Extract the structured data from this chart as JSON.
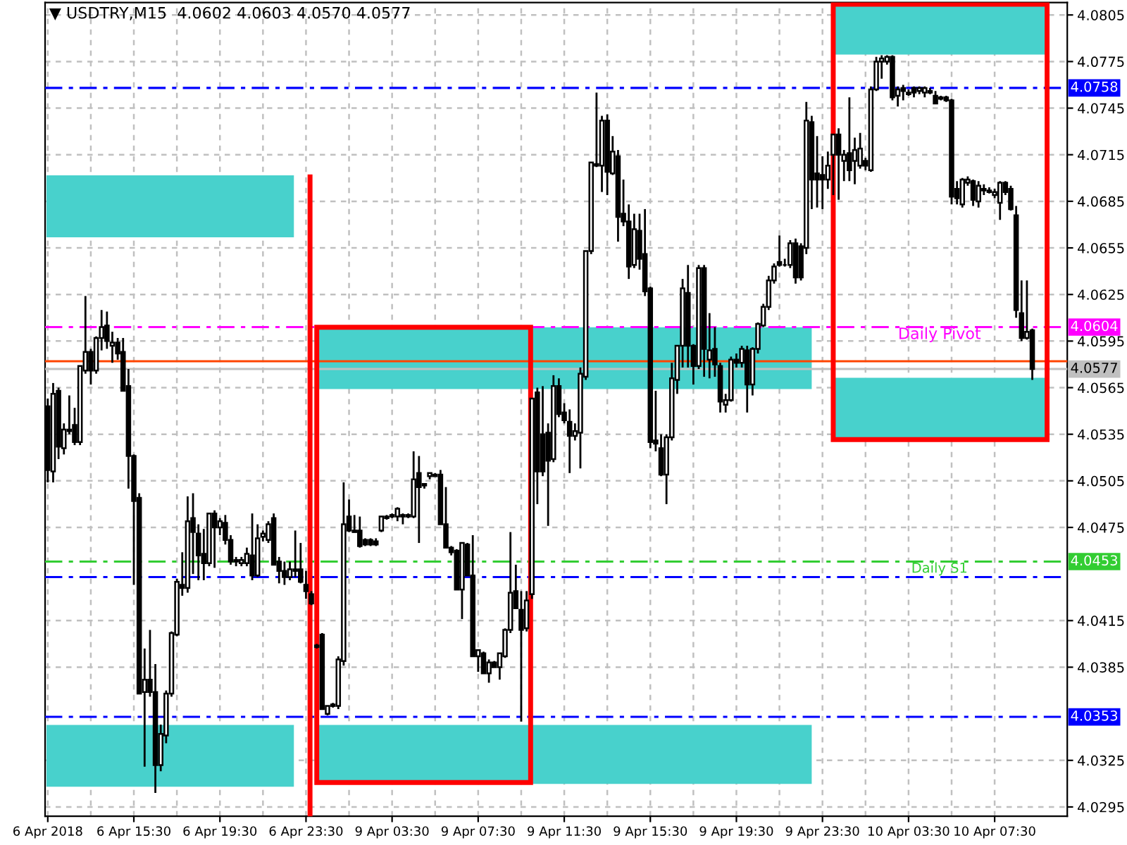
{
  "chart_data": {
    "type": "candlestick",
    "title": "▼ USDTRY,M15  4.0602 4.0603 4.0570 4.0577",
    "categories": [
      "6 Apr 2018",
      null,
      null,
      null,
      null,
      null,
      null,
      null,
      null,
      null,
      null,
      null,
      null,
      null,
      null,
      null,
      "6 Apr 15:30",
      null,
      null,
      null,
      null,
      null,
      null,
      null,
      null,
      null,
      null,
      null,
      null,
      null,
      null,
      null,
      "6 Apr 19:30",
      null,
      null,
      null,
      null,
      null,
      null,
      null,
      null,
      null,
      null,
      null,
      null,
      null,
      null,
      null,
      "6 Apr 23:30",
      null,
      null,
      null,
      null,
      null,
      null,
      null,
      null,
      null,
      null,
      null,
      null,
      null,
      null,
      null,
      "9 Apr 03:30",
      null,
      null,
      null,
      null,
      null,
      null,
      null,
      null,
      null,
      null,
      null,
      null,
      null,
      null,
      null,
      "9 Apr 07:30",
      null,
      null,
      null,
      null,
      null,
      null,
      null,
      null,
      null,
      null,
      null,
      null,
      null,
      null,
      null,
      "9 Apr 11:30",
      null,
      null,
      null,
      null,
      null,
      null,
      null,
      null,
      null,
      null,
      null,
      null,
      null,
      null,
      null,
      "9 Apr 15:30",
      null,
      null,
      null,
      null,
      null,
      null,
      null,
      null,
      null,
      null,
      null,
      null,
      null,
      null,
      null,
      "9 Apr 19:30",
      null,
      null,
      null,
      null,
      null,
      null,
      null,
      null,
      null,
      null,
      null,
      null,
      null,
      null,
      null,
      "9 Apr 23:30",
      null,
      null,
      null,
      null,
      null,
      null,
      null,
      null,
      null,
      null,
      null,
      null,
      null,
      null,
      null,
      "10 Apr 03:30",
      null,
      null,
      null,
      null,
      null,
      null,
      null,
      null,
      null,
      null,
      null,
      null,
      null,
      null,
      null,
      "10 Apr 07:30",
      null,
      null,
      null,
      null,
      null,
      null,
      null
    ],
    "ohlc": [
      [
        4.0553,
        4.0558,
        4.0504,
        4.0512
      ],
      [
        4.0511,
        4.0568,
        4.0504,
        4.0561
      ],
      [
        4.0563,
        4.0565,
        4.0519,
        4.0527
      ],
      [
        4.0526,
        4.0542,
        4.0522,
        4.0538
      ],
      [
        4.0538,
        4.056,
        4.0535,
        4.0537
      ],
      [
        4.0541,
        4.0552,
        4.0528,
        4.053
      ],
      [
        4.053,
        4.0579,
        4.0528,
        4.0579
      ],
      [
        4.0576,
        4.0624,
        4.0574,
        4.0588
      ],
      [
        4.0588,
        4.059,
        4.0567,
        4.0576
      ],
      [
        4.0576,
        4.0598,
        4.0574,
        4.0597
      ],
      [
        4.0597,
        4.0615,
        4.0589,
        4.0604
      ],
      [
        4.0605,
        4.0614,
        4.059,
        4.0595
      ],
      [
        4.0592,
        4.0601,
        4.0581,
        4.0594
      ],
      [
        4.0594,
        4.0597,
        4.0583,
        4.0587
      ],
      [
        4.0588,
        4.0597,
        4.0563,
        4.0563
      ],
      [
        4.0566,
        4.0577,
        4.05,
        4.0521
      ],
      [
        4.0521,
        4.0522,
        4.0438,
        4.0492
      ],
      [
        4.0494,
        4.0497,
        4.0368,
        4.0368
      ],
      [
        4.0369,
        4.0397,
        4.0321,
        4.0377
      ],
      [
        4.0377,
        4.0409,
        4.0366,
        4.0369
      ],
      [
        4.0369,
        4.0387,
        4.0304,
        4.0322
      ],
      [
        4.0322,
        4.0348,
        4.0318,
        4.0342
      ],
      [
        4.0341,
        4.037,
        4.0336,
        4.0368
      ],
      [
        4.0368,
        4.0408,
        4.0366,
        4.0407
      ],
      [
        4.0406,
        4.0442,
        4.0405,
        4.044
      ],
      [
        4.0438,
        4.0459,
        4.0431,
        4.0436
      ],
      [
        4.0436,
        4.0495,
        4.0433,
        4.0479
      ],
      [
        4.0481,
        4.0497,
        4.0445,
        4.0472
      ],
      [
        4.0471,
        4.0477,
        4.0441,
        4.0457
      ],
      [
        4.0458,
        4.0474,
        4.0441,
        4.0452
      ],
      [
        4.0452,
        4.0484,
        4.045,
        4.0484
      ],
      [
        4.0484,
        4.0486,
        4.0449,
        4.0475
      ],
      [
        4.0475,
        4.0481,
        4.047,
        4.0479
      ],
      [
        4.0478,
        4.0483,
        4.0464,
        4.0467
      ],
      [
        4.0467,
        4.047,
        4.0451,
        4.0453
      ],
      [
        4.0454,
        4.0456,
        4.045,
        4.0453
      ],
      [
        4.0452,
        4.0456,
        4.045,
        4.0454
      ],
      [
        4.0452,
        4.0462,
        4.045,
        4.0458
      ],
      [
        4.0457,
        4.0484,
        4.0441,
        4.0444
      ],
      [
        4.0444,
        4.0477,
        4.0443,
        4.0468
      ],
      [
        4.0469,
        4.0473,
        4.0466,
        4.0471
      ],
      [
        4.0467,
        4.0479,
        4.0465,
        4.0477
      ],
      [
        4.0481,
        4.0484,
        4.0451,
        4.0451
      ],
      [
        4.0453,
        4.0456,
        4.0439,
        4.0447
      ],
      [
        4.0447,
        4.0453,
        4.0438,
        4.0443
      ],
      [
        4.0443,
        4.0453,
        4.0441,
        4.0448
      ],
      [
        4.0447,
        4.0473,
        4.0443,
        4.0448
      ],
      [
        4.0448,
        4.0465,
        4.0439,
        4.044
      ],
      [
        4.0438,
        4.0447,
        4.0429,
        4.0434
      ],
      [
        4.0432,
        4.0434,
        4.0425,
        4.0426
      ],
      [
        4.0399,
        4.04,
        4.0397,
        4.0398
      ],
      [
        4.0406,
        4.0407,
        4.0358,
        4.0358
      ],
      [
        4.0355,
        4.036,
        4.0354,
        4.036
      ],
      [
        4.0361,
        4.0362,
        4.0359,
        4.036
      ],
      [
        4.036,
        4.0392,
        4.0358,
        4.039
      ],
      [
        4.0389,
        4.0504,
        4.0386,
        4.0477
      ],
      [
        4.0482,
        4.0493,
        4.0472,
        4.0473
      ],
      [
        4.0473,
        4.0483,
        4.0472,
        4.0472
      ],
      [
        4.0473,
        4.0482,
        4.0462,
        4.0463
      ],
      [
        4.0467,
        4.0468,
        4.0463,
        4.0464
      ],
      [
        4.0467,
        4.0468,
        4.0463,
        4.0464
      ],
      [
        4.0466,
        4.0468,
        4.0463,
        4.0464
      ],
      [
        4.0473,
        4.0482,
        4.0472,
        4.0482
      ],
      [
        4.0482,
        4.0483,
        4.048,
        4.0481
      ],
      [
        4.0483,
        4.0484,
        4.0481,
        4.0482
      ],
      [
        4.0482,
        4.0488,
        4.0479,
        4.0487
      ],
      [
        4.0483,
        4.0484,
        4.0477,
        4.0482
      ],
      [
        4.0483,
        4.0484,
        4.0481,
        4.0482
      ],
      [
        4.0482,
        4.0524,
        4.0481,
        4.0506
      ],
      [
        4.051,
        4.0521,
        4.0465,
        4.0501
      ],
      [
        4.0502,
        4.0503,
        4.05,
        4.0503
      ],
      [
        4.0508,
        4.051,
        4.0506,
        4.051
      ],
      [
        4.0509,
        4.051,
        4.0508,
        4.0508
      ],
      [
        4.0509,
        4.0512,
        4.0477,
        4.0477
      ],
      [
        4.0477,
        4.0501,
        4.0462,
        4.0462
      ],
      [
        4.0462,
        4.0463,
        4.0457,
        4.0459
      ],
      [
        4.046,
        4.0461,
        4.0435,
        4.0435
      ],
      [
        4.0435,
        4.0465,
        4.0416,
        4.0465
      ],
      [
        4.0464,
        4.0465,
        4.0444,
        4.0444
      ],
      [
        4.0444,
        4.047,
        4.0392,
        4.0392
      ],
      [
        4.0392,
        4.0396,
        4.0382,
        4.0396
      ],
      [
        4.0394,
        4.0395,
        4.0381,
        4.0381
      ],
      [
        4.0381,
        4.039,
        4.0375,
        4.0388
      ],
      [
        4.0388,
        4.0389,
        4.0385,
        4.0385
      ],
      [
        4.0385,
        4.0394,
        4.0377,
        4.0394
      ],
      [
        4.0392,
        4.041,
        4.0391,
        4.0409
      ],
      [
        4.0409,
        4.0472,
        4.0407,
        4.0433
      ],
      [
        4.0434,
        4.0451,
        4.0423,
        4.0423
      ],
      [
        4.0422,
        4.0434,
        4.035,
        4.0409
      ],
      [
        4.041,
        4.0434,
        4.0408,
        4.0428
      ],
      [
        4.0432,
        4.0558,
        4.0429,
        4.0558
      ],
      [
        4.0562,
        4.0565,
        4.049,
        4.0511
      ],
      [
        4.0535,
        4.0566,
        4.0508,
        4.0511
      ],
      [
        4.0536,
        4.0542,
        4.0476,
        4.0518
      ],
      [
        4.0519,
        4.0573,
        4.0517,
        4.0566
      ],
      [
        4.0566,
        4.0571,
        4.0546,
        4.0548
      ],
      [
        4.0549,
        4.0555,
        4.0542,
        4.0544
      ],
      [
        4.0543,
        4.0551,
        4.051,
        4.0534
      ],
      [
        4.0534,
        4.0542,
        4.0531,
        4.0537
      ],
      [
        4.0536,
        4.0578,
        4.0513,
        4.0574
      ],
      [
        4.0572,
        4.0653,
        4.057,
        4.0653
      ],
      [
        4.0653,
        4.071,
        4.0651,
        4.071
      ],
      [
        4.0709,
        4.0755,
        4.0707,
        4.0708
      ],
      [
        4.0708,
        4.074,
        4.0691,
        4.0737
      ],
      [
        4.0737,
        4.0741,
        4.0689,
        4.0704
      ],
      [
        4.0703,
        4.0727,
        4.0702,
        4.0717
      ],
      [
        4.0714,
        4.0718,
        4.0659,
        4.0675
      ],
      [
        4.0677,
        4.0699,
        4.0669,
        4.0672
      ],
      [
        4.0672,
        4.0683,
        4.0635,
        4.0643
      ],
      [
        4.0644,
        4.0677,
        4.0642,
        4.0667
      ],
      [
        4.0666,
        4.0677,
        4.0641,
        4.0648
      ],
      [
        4.0651,
        4.068,
        4.0624,
        4.0627
      ],
      [
        4.0629,
        4.063,
        4.0526,
        4.053
      ],
      [
        4.0531,
        4.0563,
        4.0524,
        4.0529
      ],
      [
        4.0526,
        4.0535,
        4.0508,
        4.0509
      ],
      [
        4.0509,
        4.0535,
        4.049,
        4.0533
      ],
      [
        4.0533,
        4.0581,
        4.0531,
        4.0571
      ],
      [
        4.057,
        4.0592,
        4.0561,
        4.0592
      ],
      [
        4.0592,
        4.0635,
        4.0578,
        4.0629
      ],
      [
        4.0626,
        4.0644,
        4.0578,
        4.0592
      ],
      [
        4.0592,
        4.0593,
        4.0567,
        4.0579
      ],
      [
        4.0579,
        4.0644,
        4.0577,
        4.0642
      ],
      [
        4.0642,
        4.0644,
        4.0572,
        4.059
      ],
      [
        4.0583,
        4.0613,
        4.0571,
        4.0589
      ],
      [
        4.059,
        4.0604,
        4.0572,
        4.058
      ],
      [
        4.0579,
        4.0581,
        4.0549,
        4.0556
      ],
      [
        4.0554,
        4.0561,
        4.0549,
        4.0557
      ],
      [
        4.0557,
        4.0585,
        4.0556,
        4.0583
      ],
      [
        4.0583,
        4.0587,
        4.0578,
        4.0581
      ],
      [
        4.0581,
        4.0592,
        4.0578,
        4.059
      ],
      [
        4.0589,
        4.0592,
        4.0549,
        4.0567
      ],
      [
        4.0567,
        4.0591,
        4.056,
        4.059
      ],
      [
        4.059,
        4.0607,
        4.0587,
        4.0606
      ],
      [
        4.0605,
        4.0619,
        4.0604,
        4.0617
      ],
      [
        4.0617,
        4.0637,
        4.0615,
        4.0634
      ],
      [
        4.0634,
        4.0645,
        4.0632,
        4.0643
      ],
      [
        4.0646,
        4.0663,
        4.0643,
        4.0644
      ],
      [
        4.0644,
        4.0648,
        4.0643,
        4.0644
      ],
      [
        4.0644,
        4.066,
        4.0642,
        4.0658
      ],
      [
        4.0658,
        4.0661,
        4.0632,
        4.0636
      ],
      [
        4.0656,
        4.0658,
        4.0634,
        4.0636
      ],
      [
        4.0655,
        4.0749,
        4.0651,
        4.0737
      ],
      [
        4.0736,
        4.074,
        4.068,
        4.0699
      ],
      [
        4.0703,
        4.0727,
        4.0681,
        4.0699
      ],
      [
        4.0702,
        4.0714,
        4.068,
        4.0699
      ],
      [
        4.0699,
        4.0717,
        4.0693,
        4.0708
      ],
      [
        4.0715,
        4.0728,
        4.0689,
        4.0728
      ],
      [
        4.0728,
        4.0732,
        4.0686,
        4.0715
      ],
      [
        4.0711,
        4.0718,
        4.0698,
        4.0715
      ],
      [
        4.0716,
        4.0752,
        4.0698,
        4.0705
      ],
      [
        4.0711,
        4.0726,
        4.0696,
        4.0718
      ],
      [
        4.0708,
        4.0729,
        4.0706,
        4.0719
      ],
      [
        4.0711,
        4.0713,
        4.0705,
        4.0708
      ],
      [
        4.0705,
        4.0759,
        4.0704,
        4.0757
      ],
      [
        4.0757,
        4.0778,
        4.0756,
        4.0775
      ],
      [
        4.0775,
        4.0779,
        4.0764,
        4.0777
      ],
      [
        4.0775,
        4.0779,
        4.0773,
        4.0778
      ],
      [
        4.0778,
        4.0779,
        4.075,
        4.0752
      ],
      [
        4.0753,
        4.0759,
        4.0746,
        4.0757
      ],
      [
        4.0758,
        4.076,
        4.075,
        4.0756
      ],
      [
        4.0755,
        4.0757,
        4.0753,
        4.0754
      ],
      [
        4.0758,
        4.0759,
        4.0752,
        4.0755
      ],
      [
        4.0756,
        4.0759,
        4.0754,
        4.0758
      ],
      [
        4.0755,
        4.0759,
        4.0752,
        4.0758
      ],
      [
        4.0756,
        4.0758,
        4.0754,
        4.0755
      ],
      [
        4.0753,
        4.0756,
        4.0748,
        4.0748
      ],
      [
        4.0752,
        4.0753,
        4.075,
        4.0751
      ],
      [
        4.0752,
        4.0753,
        4.0749,
        4.075
      ],
      [
        4.075,
        4.0751,
        4.0683,
        4.0688
      ],
      [
        4.0693,
        4.0698,
        4.0683,
        4.0687
      ],
      [
        4.0683,
        4.07,
        4.0681,
        4.0699
      ],
      [
        4.0697,
        4.0701,
        4.0695,
        4.0699
      ],
      [
        4.0698,
        4.0699,
        4.0682,
        4.0686
      ],
      [
        4.0685,
        4.0698,
        4.0681,
        4.0695
      ],
      [
        4.0692,
        4.0696,
        4.0689,
        4.0693
      ],
      [
        4.0692,
        4.0694,
        4.069,
        4.0691
      ],
      [
        4.0689,
        4.0693,
        4.0687,
        4.0691
      ],
      [
        4.0684,
        4.0698,
        4.0673,
        4.0697
      ],
      [
        4.0697,
        4.0698,
        4.0689,
        4.0691
      ],
      [
        4.0693,
        4.0695,
        4.0679,
        4.068
      ],
      [
        4.0676,
        4.0682,
        4.061,
        4.0615
      ],
      [
        4.0613,
        4.0634,
        4.0595,
        4.0597
      ],
      [
        4.0597,
        4.0634,
        4.0596,
        4.0601
      ],
      [
        4.0602,
        4.0603,
        4.057,
        4.0577
      ]
    ],
    "ylim": [
      4.0289,
      4.0813
    ],
    "yticks": [
      4.0805,
      4.0775,
      4.0745,
      4.0715,
      4.0685,
      4.0655,
      4.0625,
      4.0595,
      4.0565,
      4.0535,
      4.0505,
      4.0475,
      4.0415,
      4.0385,
      4.0325,
      4.0295
    ],
    "grid": true,
    "ref_lines": [
      {
        "axis": "y",
        "value": 4.0758,
        "label": "4.0758",
        "color": "#0000ff",
        "line_style": "dashed"
      },
      {
        "axis": "y",
        "value": 4.0604,
        "label": "4.0604",
        "color": "#ff00ff",
        "line_style": "dashed"
      },
      {
        "axis": "y",
        "value": 4.0582,
        "label": null,
        "color": "#ff4500",
        "line_style": "solid"
      },
      {
        "axis": "y",
        "value": 4.0577,
        "label": "4.0577",
        "color": "#c0c0c0",
        "line_style": "solid"
      },
      {
        "axis": "y",
        "value": 4.0443,
        "label": null,
        "color": "#0000ff",
        "line_style": "dashed"
      },
      {
        "axis": "y",
        "value": 4.0453,
        "label": "4.0453",
        "color": "#32cd32",
        "line_style": "dashed"
      },
      {
        "axis": "y",
        "value": 4.0353,
        "label": "4.0353",
        "color": "#0000ff",
        "line_style": "dashed"
      }
    ],
    "annotations": [
      {
        "text": "Daily Pivot",
        "y": 4.0604
      },
      "Daily S1"
    ]
  }
}
